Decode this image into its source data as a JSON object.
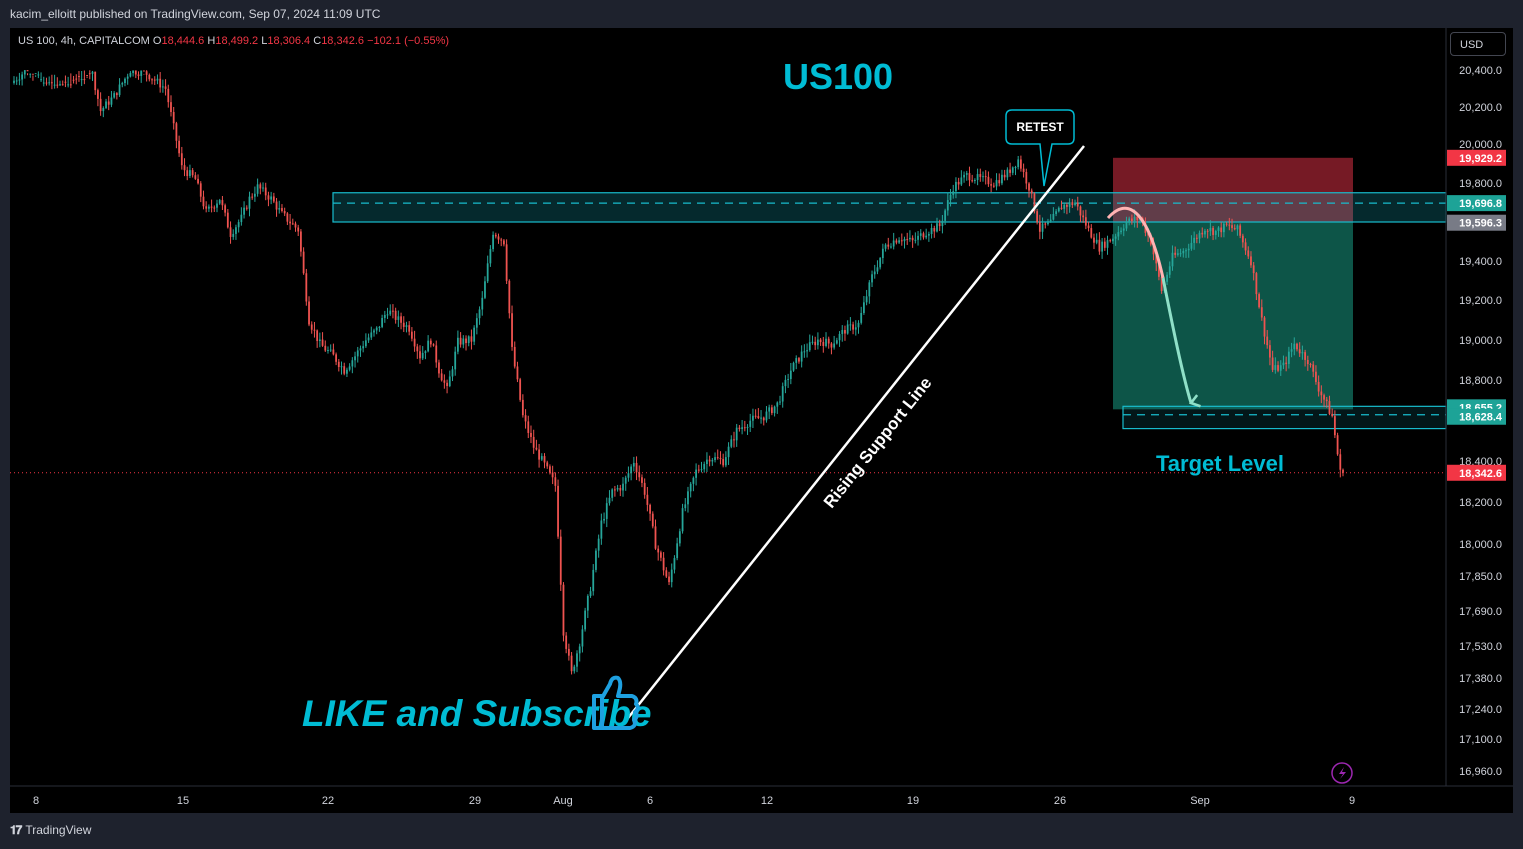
{
  "header": {
    "publisher": "kacim_elloitt published on TradingView.com, Sep 07, 2024 11:09 UTC"
  },
  "symbol_bar": {
    "symbol": "US 100, 4h, CAPITALCOM",
    "o_label": "O",
    "o": "18,444.6",
    "h_label": "H",
    "h": "18,499.2",
    "l_label": "L",
    "l": "18,306.4",
    "c_label": "C",
    "c": "18,342.6",
    "change": "−102.1 (−0.55%)"
  },
  "currency_button": "USD",
  "footer": {
    "brand": "TradingView"
  },
  "annotations": {
    "title": "US100",
    "retest": "RETEST",
    "support_line": "Rising Support Line",
    "target": "Target Level",
    "cta": "LIKE and Subscribe"
  },
  "colors": {
    "up": "#26a69a",
    "down": "#ef5350",
    "accent": "#00bcd4",
    "zone": "#18bccd",
    "stop_zone": "#8b1e2b",
    "profit_zone": "#0e5e50",
    "last_price": "#f23645"
  },
  "chart_data": {
    "type": "candlestick",
    "title": "US100",
    "x_tick_labels": [
      "8",
      "15",
      "22",
      "29",
      "Aug",
      "6",
      "12",
      "19",
      "26",
      "Sep",
      "9"
    ],
    "y_tick_labels": [
      "20,400.0",
      "20,200.0",
      "20,000.0",
      "19,800.0",
      "19,400.0",
      "19,200.0",
      "19,000.0",
      "18,800.0",
      "18,400.0",
      "18,200.0",
      "18,000.0",
      "17,850.0",
      "17,690.0",
      "17,530.0",
      "17,380.0",
      "17,240.0",
      "17,100.0",
      "16,960.0"
    ],
    "y_ticks": [
      20400,
      20200,
      20000,
      19800,
      19400,
      19200,
      19000,
      18800,
      18400,
      18200,
      18000,
      17850,
      17690,
      17530,
      17380,
      17240,
      17100,
      16960
    ],
    "y_range": [
      16900,
      20560
    ],
    "price_tags": [
      {
        "label": "19,929.2",
        "value": 19929.2,
        "kind": "stop"
      },
      {
        "label": "19,696.8",
        "value": 19696.8,
        "kind": "zone"
      },
      {
        "label": "19,596.3",
        "value": 19596.3,
        "kind": "entry"
      },
      {
        "label": "18,655.2",
        "value": 18655.2,
        "kind": "target"
      },
      {
        "label": "18,628.4",
        "value": 18628.4,
        "kind": "zone"
      },
      {
        "label": "18,342.6",
        "value": 18342.6,
        "kind": "last"
      }
    ],
    "resistance_zone": [
      19600,
      19750
    ],
    "target_zone": [
      18560,
      18670
    ],
    "stop_zone": [
      19600,
      19929.2
    ],
    "profit_zone": [
      18655.2,
      19600
    ],
    "last_price": 18342.6,
    "anchors": [
      [
        0,
        20330
      ],
      [
        8,
        20430
      ],
      [
        18,
        20470
      ],
      [
        25,
        20440
      ],
      [
        30,
        20380
      ],
      [
        33,
        20180
      ],
      [
        38,
        20260
      ],
      [
        44,
        20400
      ],
      [
        50,
        20380
      ],
      [
        57,
        20300
      ],
      [
        63,
        19880
      ],
      [
        68,
        19820
      ],
      [
        72,
        19650
      ],
      [
        77,
        19720
      ],
      [
        81,
        19540
      ],
      [
        85,
        19620
      ],
      [
        88,
        19720
      ],
      [
        91,
        19780
      ],
      [
        96,
        19720
      ],
      [
        100,
        19640
      ],
      [
        106,
        19560
      ],
      [
        110,
        19100
      ],
      [
        114,
        18980
      ],
      [
        119,
        18920
      ],
      [
        123,
        18850
      ],
      [
        127,
        18920
      ],
      [
        131,
        19000
      ],
      [
        135,
        19050
      ],
      [
        139,
        19150
      ],
      [
        143,
        19100
      ],
      [
        147,
        19060
      ],
      [
        151,
        18920
      ],
      [
        155,
        19000
      ],
      [
        158,
        18850
      ],
      [
        161,
        18750
      ],
      [
        165,
        18990
      ],
      [
        170,
        19000
      ],
      [
        174,
        19200
      ],
      [
        178,
        19550
      ],
      [
        182,
        19500
      ],
      [
        185,
        18950
      ],
      [
        189,
        18620
      ],
      [
        193,
        18470
      ],
      [
        197,
        18380
      ],
      [
        201,
        18280
      ],
      [
        204,
        17600
      ],
      [
        207,
        17400
      ],
      [
        210,
        17550
      ],
      [
        214,
        17800
      ],
      [
        218,
        18100
      ],
      [
        222,
        18250
      ],
      [
        226,
        18280
      ],
      [
        230,
        18400
      ],
      [
        234,
        18250
      ],
      [
        238,
        18000
      ],
      [
        243,
        17810
      ],
      [
        248,
        18150
      ],
      [
        253,
        18350
      ],
      [
        258,
        18420
      ],
      [
        263,
        18400
      ],
      [
        268,
        18550
      ],
      [
        273,
        18600
      ],
      [
        278,
        18620
      ],
      [
        283,
        18680
      ],
      [
        288,
        18850
      ],
      [
        293,
        18950
      ],
      [
        298,
        19000
      ],
      [
        303,
        18980
      ],
      [
        308,
        19050
      ],
      [
        313,
        19080
      ],
      [
        318,
        19320
      ],
      [
        323,
        19480
      ],
      [
        328,
        19520
      ],
      [
        333,
        19500
      ],
      [
        338,
        19550
      ],
      [
        343,
        19580
      ],
      [
        348,
        19780
      ],
      [
        353,
        19840
      ],
      [
        358,
        19820
      ],
      [
        363,
        19800
      ],
      [
        368,
        19850
      ],
      [
        372,
        19920
      ],
      [
        376,
        19780
      ],
      [
        380,
        19560
      ],
      [
        384,
        19600
      ],
      [
        388,
        19680
      ],
      [
        393,
        19700
      ],
      [
        398,
        19560
      ],
      [
        402,
        19470
      ],
      [
        407,
        19520
      ],
      [
        412,
        19600
      ],
      [
        417,
        19620
      ],
      [
        421,
        19500
      ],
      [
        425,
        19250
      ],
      [
        429,
        19420
      ],
      [
        433,
        19450
      ],
      [
        437,
        19510
      ],
      [
        441,
        19570
      ],
      [
        445,
        19550
      ],
      [
        449,
        19580
      ],
      [
        453,
        19560
      ],
      [
        458,
        19400
      ],
      [
        462,
        19100
      ],
      [
        466,
        18850
      ],
      [
        470,
        18870
      ],
      [
        474,
        18980
      ],
      [
        479,
        18900
      ],
      [
        483,
        18760
      ],
      [
        488,
        18620
      ],
      [
        491,
        18342.6
      ]
    ],
    "n_candles": 492
  }
}
